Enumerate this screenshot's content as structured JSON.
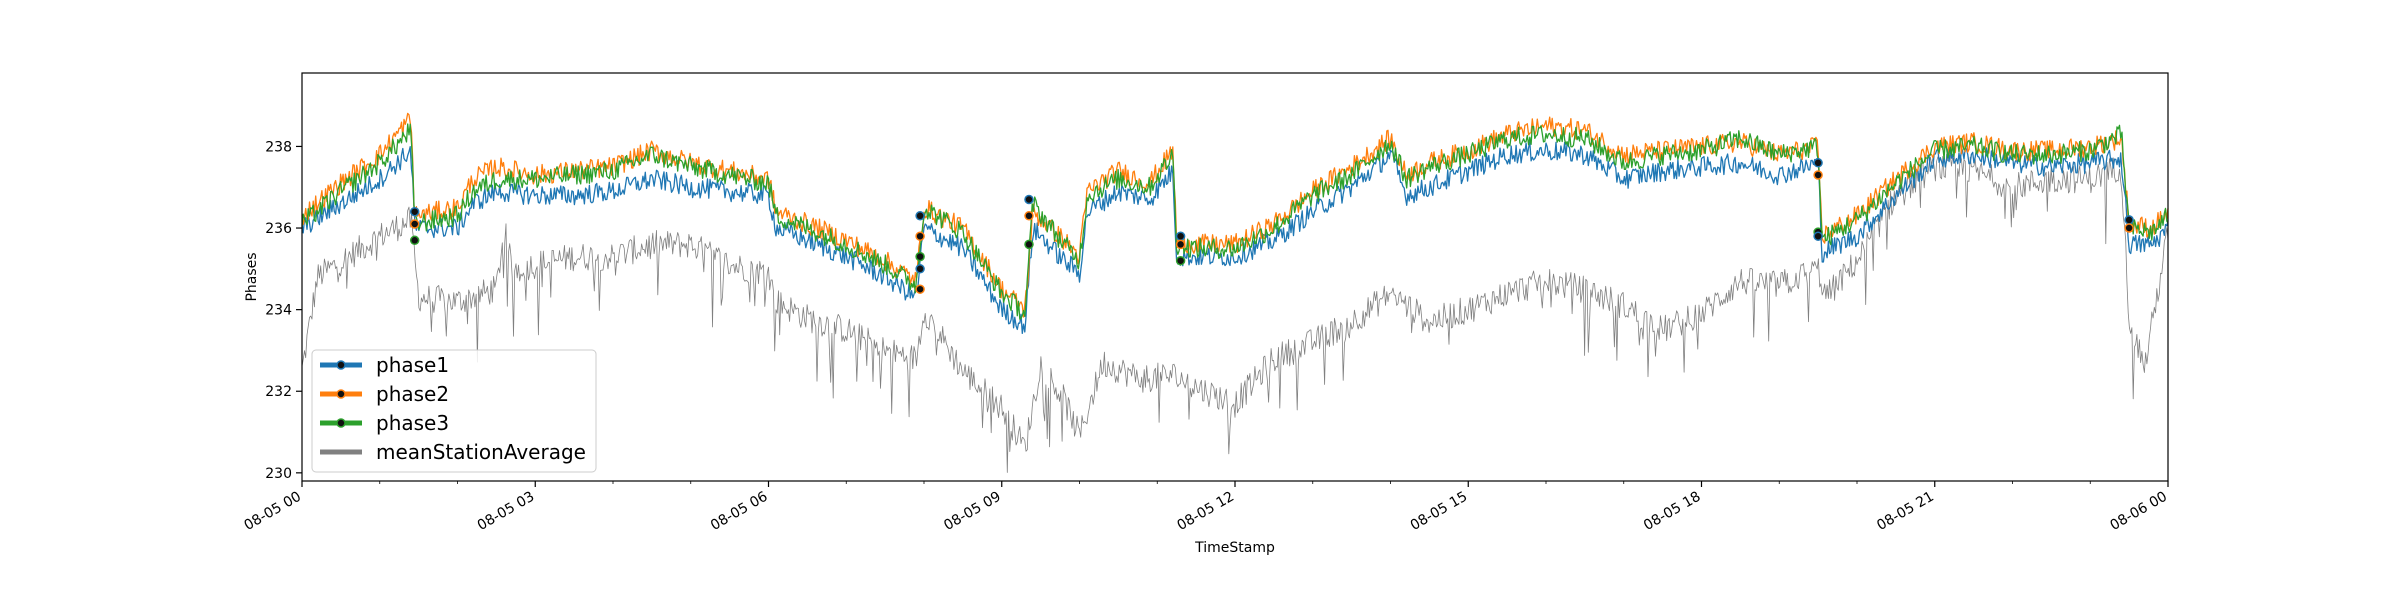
{
  "chart_data": {
    "type": "line",
    "xlabel": "TimeStamp",
    "ylabel": "Phases",
    "x_range": [
      "08-05 00:00",
      "08-06 00:00"
    ],
    "ylim": [
      229.8,
      239.8
    ],
    "yticks": [
      230,
      232,
      234,
      236,
      238
    ],
    "xtick_labels": [
      "08-05 00",
      "08-05 03",
      "08-05 06",
      "08-05 09",
      "08-05 12",
      "08-05 15",
      "08-05 18",
      "08-05 21",
      "08-06 00"
    ],
    "grid": false,
    "legend_position": "lower-left",
    "x_unit": "hours since 08-05 00:00",
    "series": [
      {
        "name": "phase1",
        "color": "#1f77b4",
        "points": [
          [
            0,
            236.0
          ],
          [
            0.5,
            236.6
          ],
          [
            1.0,
            237.2
          ],
          [
            1.4,
            237.9
          ],
          [
            1.45,
            236.0
          ],
          [
            2.0,
            236.0
          ],
          [
            2.2,
            236.6
          ],
          [
            2.5,
            236.9
          ],
          [
            3.0,
            236.8
          ],
          [
            3.5,
            236.8
          ],
          [
            4.0,
            236.9
          ],
          [
            4.5,
            237.2
          ],
          [
            5.0,
            237.0
          ],
          [
            5.5,
            236.9
          ],
          [
            6.0,
            236.8
          ],
          [
            6.1,
            236.0
          ],
          [
            6.5,
            235.7
          ],
          [
            7.0,
            235.3
          ],
          [
            7.5,
            234.8
          ],
          [
            7.9,
            234.3
          ],
          [
            8.0,
            236.0
          ],
          [
            8.5,
            235.5
          ],
          [
            9.0,
            234.0
          ],
          [
            9.3,
            233.6
          ],
          [
            9.4,
            236.0
          ],
          [
            9.8,
            235.2
          ],
          [
            10.0,
            234.9
          ],
          [
            10.1,
            236.4
          ],
          [
            10.5,
            236.9
          ],
          [
            10.9,
            236.7
          ],
          [
            11.2,
            237.4
          ],
          [
            11.25,
            235.3
          ],
          [
            11.5,
            235.3
          ],
          [
            12.0,
            235.3
          ],
          [
            12.5,
            235.7
          ],
          [
            13.0,
            236.4
          ],
          [
            13.5,
            237.0
          ],
          [
            14.0,
            237.8
          ],
          [
            14.2,
            236.8
          ],
          [
            14.5,
            237.0
          ],
          [
            15.0,
            237.4
          ],
          [
            15.5,
            237.8
          ],
          [
            16.0,
            237.9
          ],
          [
            16.5,
            237.8
          ],
          [
            17.0,
            237.2
          ],
          [
            17.5,
            237.4
          ],
          [
            18.0,
            237.5
          ],
          [
            18.5,
            237.6
          ],
          [
            19.0,
            237.3
          ],
          [
            19.5,
            237.6
          ],
          [
            19.55,
            235.4
          ],
          [
            20.0,
            235.8
          ],
          [
            20.5,
            236.8
          ],
          [
            21.0,
            237.7
          ],
          [
            21.5,
            237.8
          ],
          [
            22.0,
            237.6
          ],
          [
            22.5,
            237.5
          ],
          [
            23.0,
            237.6
          ],
          [
            23.4,
            237.7
          ],
          [
            23.5,
            235.6
          ],
          [
            23.8,
            235.6
          ],
          [
            24.0,
            236.0
          ]
        ]
      },
      {
        "name": "phase2",
        "color": "#ff7f0e",
        "points": [
          [
            0,
            236.3
          ],
          [
            0.5,
            237.1
          ],
          [
            1.0,
            237.8
          ],
          [
            1.4,
            238.7
          ],
          [
            1.45,
            236.3
          ],
          [
            2.0,
            236.5
          ],
          [
            2.2,
            237.2
          ],
          [
            2.5,
            237.5
          ],
          [
            3.0,
            237.3
          ],
          [
            3.5,
            237.4
          ],
          [
            4.0,
            237.5
          ],
          [
            4.5,
            237.9
          ],
          [
            5.0,
            237.6
          ],
          [
            5.5,
            237.4
          ],
          [
            6.0,
            237.2
          ],
          [
            6.1,
            236.4
          ],
          [
            6.5,
            236.1
          ],
          [
            7.0,
            235.7
          ],
          [
            7.5,
            235.2
          ],
          [
            7.9,
            234.7
          ],
          [
            8.0,
            236.5
          ],
          [
            8.5,
            236.0
          ],
          [
            9.0,
            234.5
          ],
          [
            9.3,
            234.0
          ],
          [
            9.4,
            236.4
          ],
          [
            9.8,
            235.7
          ],
          [
            10.0,
            235.3
          ],
          [
            10.1,
            236.9
          ],
          [
            10.5,
            237.4
          ],
          [
            10.9,
            237.1
          ],
          [
            11.2,
            237.9
          ],
          [
            11.25,
            235.7
          ],
          [
            11.5,
            235.6
          ],
          [
            12.0,
            235.6
          ],
          [
            12.5,
            236.1
          ],
          [
            13.0,
            236.9
          ],
          [
            13.5,
            237.5
          ],
          [
            14.0,
            238.2
          ],
          [
            14.2,
            237.3
          ],
          [
            14.5,
            237.6
          ],
          [
            15.0,
            237.9
          ],
          [
            15.5,
            238.3
          ],
          [
            16.0,
            238.5
          ],
          [
            16.5,
            238.4
          ],
          [
            17.0,
            237.8
          ],
          [
            17.5,
            237.9
          ],
          [
            18.0,
            238.0
          ],
          [
            18.5,
            238.1
          ],
          [
            19.0,
            237.8
          ],
          [
            19.5,
            238.0
          ],
          [
            19.55,
            235.8
          ],
          [
            20.0,
            236.3
          ],
          [
            20.5,
            237.2
          ],
          [
            21.0,
            238.0
          ],
          [
            21.5,
            238.1
          ],
          [
            22.0,
            237.9
          ],
          [
            22.5,
            237.9
          ],
          [
            23.0,
            238.0
          ],
          [
            23.4,
            238.2
          ],
          [
            23.5,
            236.1
          ],
          [
            23.8,
            236.0
          ],
          [
            24.0,
            236.4
          ]
        ]
      },
      {
        "name": "phase3",
        "color": "#2ca02c",
        "points": [
          [
            0,
            236.1
          ],
          [
            0.5,
            236.9
          ],
          [
            1.0,
            237.6
          ],
          [
            1.4,
            238.4
          ],
          [
            1.45,
            236.1
          ],
          [
            2.0,
            236.3
          ],
          [
            2.2,
            236.9
          ],
          [
            2.5,
            237.2
          ],
          [
            3.0,
            237.2
          ],
          [
            3.5,
            237.3
          ],
          [
            4.0,
            237.4
          ],
          [
            4.5,
            237.8
          ],
          [
            5.0,
            237.5
          ],
          [
            5.5,
            237.3
          ],
          [
            6.0,
            237.1
          ],
          [
            6.1,
            236.3
          ],
          [
            6.5,
            236.0
          ],
          [
            7.0,
            235.6
          ],
          [
            7.5,
            235.1
          ],
          [
            7.9,
            234.6
          ],
          [
            8.0,
            236.5
          ],
          [
            8.5,
            235.9
          ],
          [
            9.0,
            234.4
          ],
          [
            9.3,
            233.9
          ],
          [
            9.4,
            236.6
          ],
          [
            9.8,
            235.6
          ],
          [
            10.0,
            235.2
          ],
          [
            10.1,
            236.8
          ],
          [
            10.5,
            237.2
          ],
          [
            10.9,
            237.0
          ],
          [
            11.2,
            237.8
          ],
          [
            11.25,
            235.6
          ],
          [
            11.5,
            235.5
          ],
          [
            12.0,
            235.5
          ],
          [
            12.5,
            236.0
          ],
          [
            13.0,
            236.8
          ],
          [
            13.5,
            237.3
          ],
          [
            14.0,
            238.1
          ],
          [
            14.2,
            237.2
          ],
          [
            14.5,
            237.5
          ],
          [
            15.0,
            237.8
          ],
          [
            15.5,
            238.2
          ],
          [
            16.0,
            238.3
          ],
          [
            16.5,
            238.2
          ],
          [
            17.0,
            237.6
          ],
          [
            17.5,
            237.8
          ],
          [
            18.0,
            237.9
          ],
          [
            18.5,
            238.2
          ],
          [
            19.0,
            237.8
          ],
          [
            19.5,
            238.0
          ],
          [
            19.55,
            235.7
          ],
          [
            20.0,
            236.2
          ],
          [
            20.5,
            237.1
          ],
          [
            21.0,
            237.9
          ],
          [
            21.5,
            238.0
          ],
          [
            22.0,
            237.8
          ],
          [
            22.5,
            237.8
          ],
          [
            23.0,
            237.9
          ],
          [
            23.4,
            238.3
          ],
          [
            23.5,
            236.0
          ],
          [
            23.8,
            235.9
          ],
          [
            24.0,
            236.3
          ]
        ]
      },
      {
        "name": "meanStationAverage",
        "color": "#808080",
        "points": [
          [
            0,
            232.5
          ],
          [
            0.2,
            234.8
          ],
          [
            0.6,
            235.3
          ],
          [
            1.0,
            235.8
          ],
          [
            1.4,
            236.2
          ],
          [
            1.5,
            234.3
          ],
          [
            2.0,
            234.2
          ],
          [
            2.5,
            234.5
          ],
          [
            2.6,
            236.0
          ],
          [
            2.7,
            235.0
          ],
          [
            3.0,
            235.1
          ],
          [
            3.5,
            235.3
          ],
          [
            4.0,
            235.3
          ],
          [
            4.5,
            235.6
          ],
          [
            5.0,
            235.6
          ],
          [
            5.5,
            235.1
          ],
          [
            6.0,
            234.9
          ],
          [
            6.1,
            234.2
          ],
          [
            6.5,
            233.8
          ],
          [
            7.0,
            233.5
          ],
          [
            7.5,
            233.0
          ],
          [
            7.9,
            232.8
          ],
          [
            8.0,
            234.0
          ],
          [
            8.5,
            232.5
          ],
          [
            9.0,
            231.6
          ],
          [
            9.3,
            230.6
          ],
          [
            9.5,
            232.7
          ],
          [
            9.8,
            231.8
          ],
          [
            10.0,
            230.9
          ],
          [
            10.3,
            232.7
          ],
          [
            10.8,
            232.3
          ],
          [
            11.2,
            232.4
          ],
          [
            11.5,
            232.1
          ],
          [
            12.0,
            231.7
          ],
          [
            12.5,
            232.8
          ],
          [
            13.0,
            233.2
          ],
          [
            13.5,
            233.7
          ],
          [
            14.0,
            234.4
          ],
          [
            14.5,
            233.7
          ],
          [
            15.0,
            234.0
          ],
          [
            15.5,
            234.4
          ],
          [
            16.0,
            234.7
          ],
          [
            16.5,
            234.5
          ],
          [
            17.0,
            234.1
          ],
          [
            17.5,
            233.5
          ],
          [
            18.0,
            233.9
          ],
          [
            18.5,
            234.7
          ],
          [
            19.0,
            234.6
          ],
          [
            19.5,
            235.0
          ],
          [
            19.6,
            234.3
          ],
          [
            20.0,
            235.2
          ],
          [
            20.5,
            236.8
          ],
          [
            21.0,
            237.5
          ],
          [
            21.5,
            237.4
          ],
          [
            22.0,
            237.0
          ],
          [
            22.5,
            237.2
          ],
          [
            23.0,
            237.2
          ],
          [
            23.4,
            237.5
          ],
          [
            23.5,
            233.8
          ],
          [
            23.7,
            232.6
          ],
          [
            24.0,
            235.9
          ]
        ]
      }
    ],
    "transition_markers": [
      {
        "x": 1.45,
        "values": [
          236.4,
          236.1,
          235.7
        ]
      },
      {
        "x": 7.95,
        "values": [
          236.3,
          235.8,
          235.3,
          235.0,
          234.5
        ]
      },
      {
        "x": 9.35,
        "values": [
          236.7,
          236.3,
          235.6
        ]
      },
      {
        "x": 11.3,
        "values": [
          235.8,
          235.6,
          235.2
        ]
      },
      {
        "x": 19.5,
        "values": [
          237.6,
          237.3,
          235.9,
          235.8
        ]
      },
      {
        "x": 23.5,
        "values": [
          236.2,
          236.0
        ]
      }
    ]
  }
}
